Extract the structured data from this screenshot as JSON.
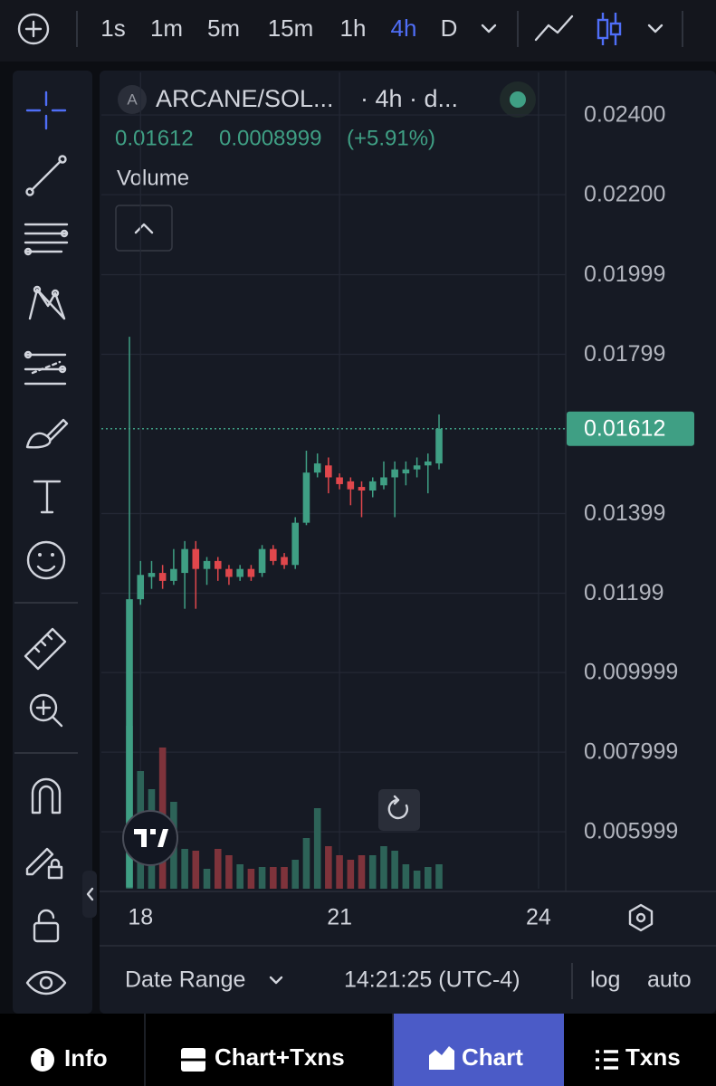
{
  "toolbar": {
    "intervals": [
      "1s",
      "1m",
      "5m",
      "15m",
      "1h",
      "4h",
      "D"
    ]
  },
  "chart_data": {
    "type": "candlestick",
    "symbol_badge": "A",
    "title": "ARCANE/SOL...",
    "subtitle": "· 4h · d...",
    "quote": {
      "close": "0.01612",
      "change": "0.0008999",
      "change_percent": "(+5.91%)"
    },
    "volume_label": "Volume",
    "x": [
      17.833,
      18,
      18.167,
      18.333,
      18.5,
      18.667,
      18.833,
      19,
      19.167,
      19.333,
      19.5,
      19.667,
      19.833,
      20,
      20.167,
      20.333,
      20.5,
      20.667,
      20.833,
      21,
      21.167,
      21.333,
      21.5,
      21.667,
      21.833,
      22,
      22.167,
      22.333,
      22.5
    ],
    "open": [
      0.0046,
      0.01184,
      0.0124,
      0.0125,
      0.0123,
      0.0125,
      0.0131,
      0.0126,
      0.0128,
      0.0126,
      0.0124,
      0.0126,
      0.0125,
      0.0131,
      0.0129,
      0.0127,
      0.01376,
      0.01502,
      0.0152,
      0.0149,
      0.0148,
      0.01466,
      0.01457,
      0.0147,
      0.0149,
      0.015,
      0.0151,
      0.0152,
      0.01525
    ],
    "high": [
      0.01843,
      0.0128,
      0.0128,
      0.0127,
      0.0131,
      0.0133,
      0.0133,
      0.0129,
      0.0129,
      0.0127,
      0.0127,
      0.0127,
      0.0132,
      0.0132,
      0.013,
      0.0139,
      0.01557,
      0.0155,
      0.0154,
      0.015,
      0.0149,
      0.0148,
      0.0149,
      0.0153,
      0.0153,
      0.0153,
      0.0154,
      0.0155,
      0.01648
    ],
    "low": [
      0.0046,
      0.0117,
      0.0121,
      0.0121,
      0.0122,
      0.0116,
      0.0116,
      0.0122,
      0.0123,
      0.0122,
      0.0123,
      0.0123,
      0.0124,
      0.0127,
      0.0126,
      0.0126,
      0.0137,
      0.0149,
      0.0145,
      0.0146,
      0.0142,
      0.0139,
      0.0144,
      0.0146,
      0.0139,
      0.0147,
      0.0149,
      0.0145,
      0.0151
    ],
    "close": [
      0.01184,
      0.01245,
      0.0125,
      0.0123,
      0.0126,
      0.0131,
      0.0126,
      0.0128,
      0.0126,
      0.0124,
      0.0126,
      0.0124,
      0.0131,
      0.0128,
      0.0127,
      0.01376,
      0.01502,
      0.01525,
      0.0149,
      0.01473,
      0.0146,
      0.01457,
      0.0148,
      0.0149,
      0.0151,
      0.0151,
      0.0152,
      0.0153,
      0.01612
    ],
    "volume": [
      180,
      130,
      110,
      156,
      96,
      44,
      42,
      22,
      44,
      37,
      27,
      22,
      24,
      24,
      24,
      32,
      56,
      89,
      47,
      37,
      32,
      37,
      37,
      47,
      42,
      27,
      20,
      24,
      27
    ],
    "up_color": "#3f9f84",
    "down_color": "#e0474c",
    "volume_up_color": "#2d6358",
    "volume_down_color": "#7e333b",
    "xlim": [
      17.41,
      24.41
    ],
    "xticks": [
      18,
      21,
      24
    ],
    "ylim": [
      0.00457,
      0.02507
    ],
    "yticks": [
      {
        "value": 0.024,
        "label": "0.02400"
      },
      {
        "value": 0.022,
        "label": "0.02200"
      },
      0.01999,
      0.01799,
      0.01399,
      0.01199,
      0.009999,
      0.007999,
      0.005999
    ],
    "last_price": 0.01612,
    "grid": true
  },
  "footer": {
    "date_range": "Date Range",
    "time": "14:21:25 (UTC-4)",
    "log": "log",
    "auto": "auto"
  },
  "tabs": [
    "Info",
    "Chart+Txns",
    "Chart",
    "Txns"
  ]
}
